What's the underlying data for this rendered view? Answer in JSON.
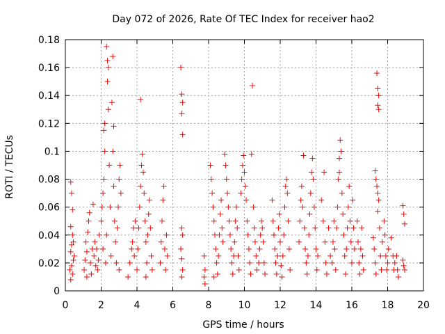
{
  "chart_data": {
    "type": "scatter",
    "title": "Day 072 of 2026, Rate Of TEC Index for receiver hao2",
    "xlabel": "GPS time / hours",
    "ylabel": "ROTI / TECUs",
    "xlim": [
      0,
      20
    ],
    "ylim": [
      0,
      0.18
    ],
    "x_ticks": [
      0,
      2,
      4,
      6,
      8,
      10,
      12,
      14,
      16,
      18,
      20
    ],
    "y_ticks": [
      0,
      0.02,
      0.04,
      0.06,
      0.08,
      0.1,
      0.12,
      0.14,
      0.16,
      0.18
    ],
    "x_tick_labels": [
      "0",
      "2",
      "4",
      "6",
      "8",
      "10",
      "12",
      "14",
      "16",
      "18",
      "20"
    ],
    "y_tick_labels": [
      "0",
      "0.02",
      "0.04",
      "0.06",
      "0.08",
      "0.1",
      "0.12",
      "0.14",
      "0.16",
      "0.18"
    ],
    "grid": true,
    "marker": "+",
    "series_color": "#ff0000",
    "series": [
      {
        "name": "ROTI",
        "points": [
          [
            0.3,
            0.078
          ],
          [
            0.35,
            0.07
          ],
          [
            0.4,
            0.058
          ],
          [
            0.3,
            0.046
          ],
          [
            0.4,
            0.04
          ],
          [
            0.35,
            0.033
          ],
          [
            0.3,
            0.028
          ],
          [
            0.45,
            0.022
          ],
          [
            0.35,
            0.018
          ],
          [
            0.4,
            0.012
          ],
          [
            0.3,
            0.008
          ],
          [
            0.5,
            0.025
          ],
          [
            0.45,
            0.035
          ],
          [
            0.25,
            0.015
          ],
          [
            1.05,
            0.015
          ],
          [
            1.1,
            0.022
          ],
          [
            1.2,
            0.028
          ],
          [
            1.15,
            0.035
          ],
          [
            1.25,
            0.042
          ],
          [
            1.3,
            0.05
          ],
          [
            1.35,
            0.056
          ],
          [
            1.2,
            0.01
          ],
          [
            1.4,
            0.02
          ],
          [
            1.5,
            0.03
          ],
          [
            1.45,
            0.012
          ],
          [
            1.6,
            0.025
          ],
          [
            1.55,
            0.062
          ],
          [
            1.7,
            0.018
          ],
          [
            1.65,
            0.035
          ],
          [
            1.8,
            0.015
          ],
          [
            1.75,
            0.03
          ],
          [
            1.9,
            0.04
          ],
          [
            1.85,
            0.022
          ],
          [
            2.0,
            0.05
          ],
          [
            2.05,
            0.06
          ],
          [
            2.1,
            0.07
          ],
          [
            2.15,
            0.08
          ],
          [
            2.2,
            0.1
          ],
          [
            2.15,
            0.115
          ],
          [
            2.2,
            0.12
          ],
          [
            2.1,
            0.03
          ],
          [
            2.25,
            0.02
          ],
          [
            2.3,
            0.175
          ],
          [
            2.35,
            0.165
          ],
          [
            2.4,
            0.16
          ],
          [
            2.35,
            0.15
          ],
          [
            2.4,
            0.13
          ],
          [
            2.45,
            0.09
          ],
          [
            2.5,
            0.06
          ],
          [
            2.3,
            0.04
          ],
          [
            2.55,
            0.025
          ],
          [
            2.6,
            0.135
          ],
          [
            2.65,
            0.1
          ],
          [
            2.7,
            0.075
          ],
          [
            2.75,
            0.05
          ],
          [
            2.8,
            0.035
          ],
          [
            2.9,
            0.045
          ],
          [
            2.95,
            0.06
          ],
          [
            3.0,
            0.08
          ],
          [
            3.05,
            0.09
          ],
          [
            3.1,
            0.07
          ],
          [
            2.85,
            0.02
          ],
          [
            3.0,
            0.015
          ],
          [
            2.65,
            0.168
          ],
          [
            2.7,
            0.118
          ],
          [
            3.5,
            0.01
          ],
          [
            3.6,
            0.02
          ],
          [
            3.7,
            0.03
          ],
          [
            3.75,
            0.035
          ],
          [
            3.8,
            0.045
          ],
          [
            3.9,
            0.05
          ],
          [
            3.85,
            0.025
          ],
          [
            4.0,
            0.015
          ],
          [
            4.05,
            0.03
          ],
          [
            4.1,
            0.045
          ],
          [
            4.15,
            0.06
          ],
          [
            4.2,
            0.075
          ],
          [
            4.25,
            0.09
          ],
          [
            4.3,
            0.098
          ],
          [
            4.35,
            0.085
          ],
          [
            4.4,
            0.07
          ],
          [
            4.2,
            0.137
          ],
          [
            4.45,
            0.05
          ],
          [
            4.5,
            0.035
          ],
          [
            4.55,
            0.02
          ],
          [
            4.6,
            0.04
          ],
          [
            4.65,
            0.055
          ],
          [
            4.7,
            0.065
          ],
          [
            4.75,
            0.045
          ],
          [
            4.8,
            0.025
          ],
          [
            4.85,
            0.015
          ],
          [
            4.5,
            0.01
          ],
          [
            5.3,
            0.02
          ],
          [
            5.35,
            0.035
          ],
          [
            5.4,
            0.05
          ],
          [
            5.45,
            0.065
          ],
          [
            5.5,
            0.075
          ],
          [
            5.55,
            0.03
          ],
          [
            5.6,
            0.015
          ],
          [
            5.65,
            0.04
          ],
          [
            5.7,
            0.025
          ],
          [
            6.45,
            0.16
          ],
          [
            6.5,
            0.141
          ],
          [
            6.55,
            0.135
          ],
          [
            6.5,
            0.127
          ],
          [
            6.55,
            0.112
          ],
          [
            6.5,
            0.045
          ],
          [
            6.55,
            0.04
          ],
          [
            6.5,
            0.023
          ],
          [
            6.55,
            0.015
          ],
          [
            6.5,
            0.01
          ],
          [
            6.45,
            0.03
          ],
          [
            7.75,
            0.025
          ],
          [
            7.8,
            0.015
          ],
          [
            7.75,
            0.01
          ],
          [
            7.8,
            0.005
          ],
          [
            8.1,
            0.09
          ],
          [
            8.15,
            0.08
          ],
          [
            8.2,
            0.07
          ],
          [
            8.25,
            0.06
          ],
          [
            8.3,
            0.05
          ],
          [
            8.35,
            0.04
          ],
          [
            8.4,
            0.03
          ],
          [
            8.45,
            0.02
          ],
          [
            8.5,
            0.012
          ],
          [
            8.55,
            0.025
          ],
          [
            8.6,
            0.04
          ],
          [
            8.65,
            0.055
          ],
          [
            8.7,
            0.065
          ],
          [
            8.75,
            0.045
          ],
          [
            8.8,
            0.035
          ],
          [
            8.3,
            0.01
          ],
          [
            8.9,
            0.098
          ],
          [
            8.95,
            0.09
          ],
          [
            9.0,
            0.08
          ],
          [
            9.05,
            0.07
          ],
          [
            9.1,
            0.06
          ],
          [
            9.15,
            0.05
          ],
          [
            9.2,
            0.04
          ],
          [
            9.25,
            0.03
          ],
          [
            9.3,
            0.02
          ],
          [
            9.35,
            0.012
          ],
          [
            9.4,
            0.025
          ],
          [
            9.45,
            0.035
          ],
          [
            9.5,
            0.05
          ],
          [
            9.55,
            0.06
          ],
          [
            9.6,
            0.045
          ],
          [
            9.65,
            0.025
          ],
          [
            9.7,
            0.015
          ],
          [
            9.8,
            0.07
          ],
          [
            9.85,
            0.08
          ],
          [
            9.9,
            0.09
          ],
          [
            9.95,
            0.097
          ],
          [
            10.0,
            0.085
          ],
          [
            10.05,
            0.075
          ],
          [
            10.1,
            0.065
          ],
          [
            10.15,
            0.05
          ],
          [
            10.2,
            0.04
          ],
          [
            10.25,
            0.03
          ],
          [
            10.3,
            0.02
          ],
          [
            10.35,
            0.012
          ],
          [
            10.45,
            0.147
          ],
          [
            10.5,
            0.06
          ],
          [
            10.55,
            0.045
          ],
          [
            10.6,
            0.035
          ],
          [
            10.65,
            0.025
          ],
          [
            10.7,
            0.015
          ],
          [
            10.8,
            0.02
          ],
          [
            10.85,
            0.03
          ],
          [
            10.9,
            0.04
          ],
          [
            10.95,
            0.05
          ],
          [
            11.0,
            0.045
          ],
          [
            11.05,
            0.035
          ],
          [
            11.1,
            0.02
          ],
          [
            11.15,
            0.012
          ],
          [
            10.4,
            0.098
          ],
          [
            11.55,
            0.065
          ],
          [
            11.6,
            0.05
          ],
          [
            11.65,
            0.04
          ],
          [
            11.7,
            0.03
          ],
          [
            11.75,
            0.02
          ],
          [
            11.8,
            0.012
          ],
          [
            11.85,
            0.025
          ],
          [
            11.9,
            0.045
          ],
          [
            11.95,
            0.055
          ],
          [
            12.0,
            0.035
          ],
          [
            12.05,
            0.018
          ],
          [
            12.1,
            0.01
          ],
          [
            12.15,
            0.025
          ],
          [
            12.2,
            0.04
          ],
          [
            12.25,
            0.06
          ],
          [
            12.3,
            0.075
          ],
          [
            12.35,
            0.08
          ],
          [
            12.4,
            0.07
          ],
          [
            12.45,
            0.05
          ],
          [
            12.5,
            0.03
          ],
          [
            12.55,
            0.015
          ],
          [
            13.05,
            0.035
          ],
          [
            13.1,
            0.05
          ],
          [
            13.15,
            0.065
          ],
          [
            13.2,
            0.075
          ],
          [
            13.25,
            0.06
          ],
          [
            13.3,
            0.097
          ],
          [
            13.35,
            0.045
          ],
          [
            13.4,
            0.03
          ],
          [
            13.45,
            0.02
          ],
          [
            13.5,
            0.012
          ],
          [
            13.55,
            0.025
          ],
          [
            13.6,
            0.04
          ],
          [
            13.65,
            0.055
          ],
          [
            13.7,
            0.07
          ],
          [
            13.75,
            0.085
          ],
          [
            13.8,
            0.095
          ],
          [
            13.85,
            0.08
          ],
          [
            13.9,
            0.06
          ],
          [
            13.95,
            0.045
          ],
          [
            14.0,
            0.03
          ],
          [
            14.05,
            0.015
          ],
          [
            14.1,
            0.025
          ],
          [
            14.3,
            0.065
          ],
          [
            14.4,
            0.05
          ],
          [
            14.45,
            0.085
          ],
          [
            14.5,
            0.035
          ],
          [
            14.55,
            0.02
          ],
          [
            14.6,
            0.012
          ],
          [
            14.7,
            0.045
          ],
          [
            14.8,
            0.025
          ],
          [
            14.9,
            0.02
          ],
          [
            14.95,
            0.035
          ],
          [
            15.0,
            0.05
          ],
          [
            15.05,
            0.03
          ],
          [
            15.1,
            0.015
          ],
          [
            15.15,
            0.045
          ],
          [
            15.2,
            0.06
          ],
          [
            15.25,
            0.08
          ],
          [
            15.3,
            0.095
          ],
          [
            15.35,
            0.108
          ],
          [
            15.4,
            0.1
          ],
          [
            15.3,
            0.085
          ],
          [
            15.45,
            0.07
          ],
          [
            15.5,
            0.055
          ],
          [
            15.55,
            0.04
          ],
          [
            15.6,
            0.025
          ],
          [
            15.65,
            0.012
          ],
          [
            15.7,
            0.03
          ],
          [
            15.75,
            0.045
          ],
          [
            15.8,
            0.06
          ],
          [
            15.85,
            0.075
          ],
          [
            15.9,
            0.05
          ],
          [
            15.95,
            0.035
          ],
          [
            16.0,
            0.02
          ],
          [
            16.05,
            0.065
          ],
          [
            16.1,
            0.045
          ],
          [
            16.15,
            0.03
          ],
          [
            16.3,
            0.05
          ],
          [
            16.35,
            0.035
          ],
          [
            16.4,
            0.02
          ],
          [
            16.45,
            0.012
          ],
          [
            16.5,
            0.03
          ],
          [
            16.55,
            0.045
          ],
          [
            16.6,
            0.025
          ],
          [
            16.65,
            0.015
          ],
          [
            17.2,
            0.038
          ],
          [
            17.25,
            0.03
          ],
          [
            17.3,
            0.02
          ],
          [
            17.35,
            0.012
          ],
          [
            17.3,
            0.086
          ],
          [
            17.35,
            0.08
          ],
          [
            17.4,
            0.075
          ],
          [
            17.45,
            0.07
          ],
          [
            17.5,
            0.065
          ],
          [
            17.45,
            0.057
          ],
          [
            17.4,
            0.156
          ],
          [
            17.45,
            0.145
          ],
          [
            17.5,
            0.14
          ],
          [
            17.45,
            0.133
          ],
          [
            17.5,
            0.13
          ],
          [
            17.55,
            0.045
          ],
          [
            17.6,
            0.025
          ],
          [
            17.65,
            0.015
          ],
          [
            17.7,
            0.035
          ],
          [
            17.8,
            0.05
          ],
          [
            17.85,
            0.04
          ],
          [
            17.9,
            0.025
          ],
          [
            17.95,
            0.015
          ],
          [
            18.0,
            0.02
          ],
          [
            18.05,
            0.03
          ],
          [
            18.2,
            0.038
          ],
          [
            18.3,
            0.025
          ],
          [
            18.35,
            0.015
          ],
          [
            18.4,
            0.02
          ],
          [
            18.5,
            0.025
          ],
          [
            18.55,
            0.015
          ],
          [
            18.6,
            0.01
          ],
          [
            18.85,
            0.061
          ],
          [
            18.9,
            0.055
          ],
          [
            18.95,
            0.048
          ],
          [
            18.85,
            0.022
          ],
          [
            18.9,
            0.018
          ],
          [
            18.95,
            0.015
          ]
        ]
      }
    ]
  }
}
